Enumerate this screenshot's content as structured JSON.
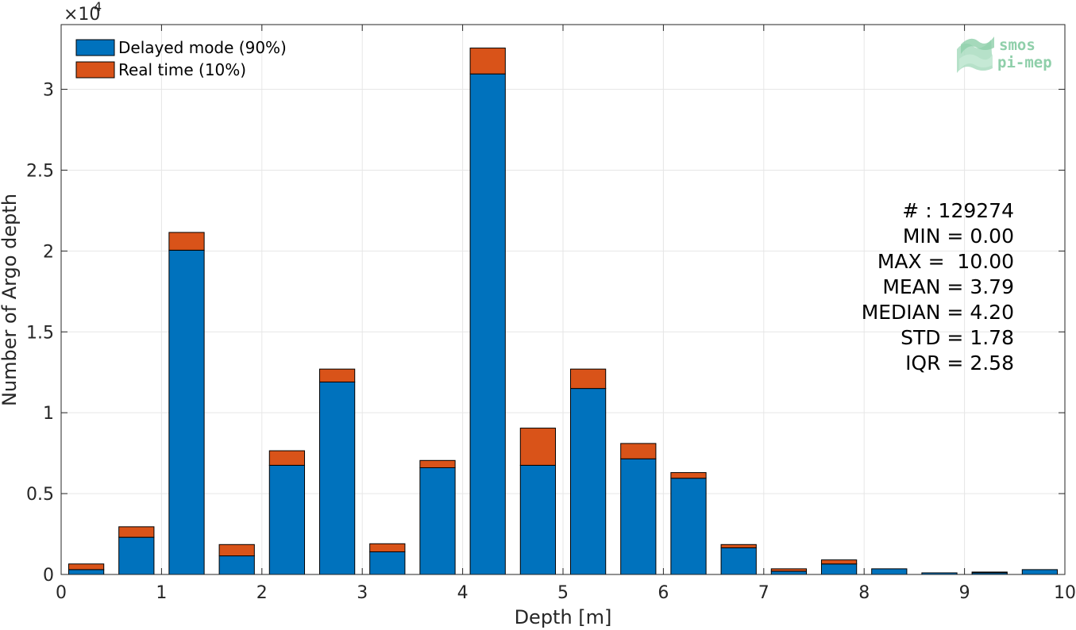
{
  "chart_data": {
    "type": "bar",
    "stacked": true,
    "x": [
      0.25,
      0.75,
      1.25,
      1.75,
      2.25,
      2.75,
      3.25,
      3.75,
      4.25,
      4.75,
      5.25,
      5.75,
      6.25,
      6.75,
      7.25,
      7.75,
      8.25,
      8.75,
      9.25,
      9.75
    ],
    "series": [
      {
        "name": "Delayed mode (90%)",
        "color": "#0072bd",
        "values": [
          300,
          2300,
          20050,
          1150,
          6750,
          11900,
          1400,
          6600,
          30950,
          6750,
          11500,
          7150,
          5950,
          1650,
          200,
          650,
          350,
          100,
          100,
          300
        ]
      },
      {
        "name": "Real time (10%)",
        "color": "#d95319",
        "values": [
          350,
          650,
          1100,
          700,
          900,
          800,
          500,
          450,
          1600,
          2300,
          1200,
          950,
          350,
          200,
          150,
          250,
          0,
          0,
          50,
          0
        ]
      }
    ],
    "xlabel": "Depth [m]",
    "ylabel": "Number of Argo depth",
    "xlim": [
      0,
      10
    ],
    "ylim": [
      0,
      34000
    ],
    "xticks": [
      0,
      1,
      2,
      3,
      4,
      5,
      6,
      7,
      8,
      9,
      10
    ],
    "yticks": [
      0,
      5000,
      10000,
      15000,
      20000,
      25000,
      30000
    ],
    "ytick_labels": [
      "0",
      "0.5",
      "1",
      "1.5",
      "2",
      "2.5",
      "3"
    ],
    "y_exponent_label": "×10",
    "y_exponent_power": "4",
    "grid": true,
    "legend_position": "top-left",
    "stats": {
      "count": "# : 129274",
      "min": "MIN = 0.00",
      "max": "MAX =  10.00",
      "mean": "MEAN = 3.79",
      "median": "MEDIAN = 4.20",
      "std": "STD = 1.78",
      "iqr": "IQR = 2.58"
    }
  },
  "logo": {
    "line1": "smos",
    "line2": "pi-mep"
  }
}
